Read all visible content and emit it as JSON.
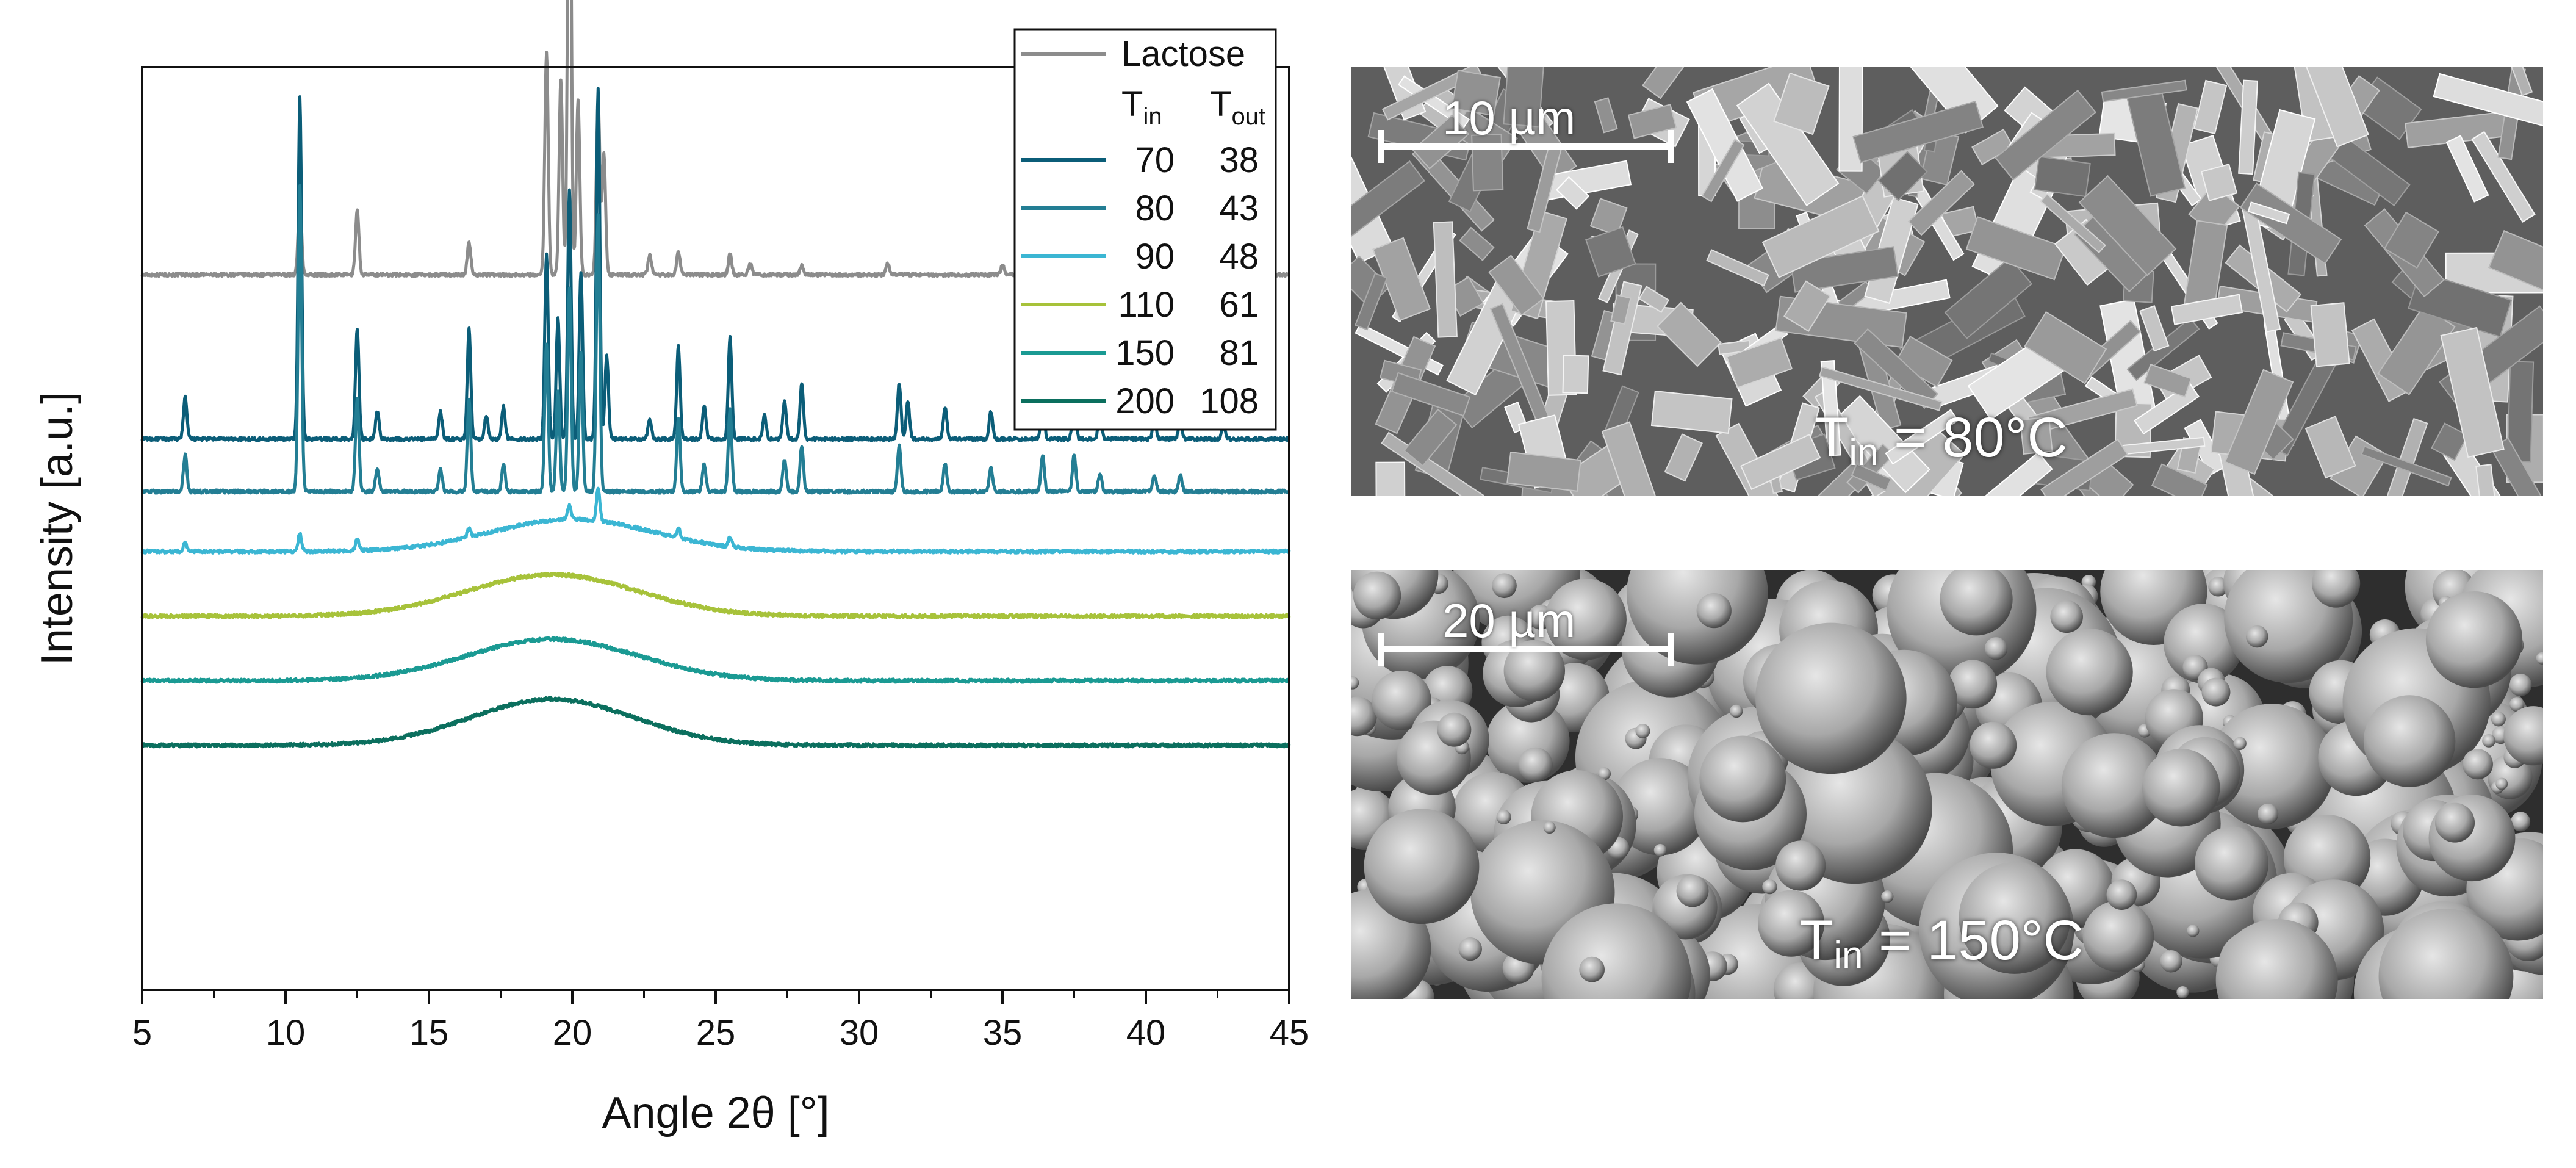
{
  "chart_data": {
    "type": "line",
    "xlabel": "Angle 2θ [°]",
    "ylabel": "Intensity [a.u.]",
    "xlim": [
      5,
      45
    ],
    "xticks": [
      5,
      10,
      15,
      20,
      25,
      30,
      35,
      40,
      45
    ],
    "yticks_shown": false,
    "stacked_offsets": true,
    "legend": {
      "placement": "top-right inside plot",
      "col_header_in": "T",
      "col_header_in_sub": "in",
      "col_header_out": "T",
      "col_header_out_sub": "out"
    },
    "series": [
      {
        "name": "Lactose",
        "t_in": "",
        "t_out": "",
        "color": "#8c8c8c",
        "baseline": 0.775,
        "amorphous": {
          "height": 0.0,
          "center": 19.5,
          "width": 3.5
        },
        "peaks": [
          [
            10.5,
            0.08
          ],
          [
            12.5,
            0.07
          ],
          [
            16.4,
            0.035
          ],
          [
            19.1,
            0.24
          ],
          [
            19.6,
            0.21
          ],
          [
            19.9,
            0.58
          ],
          [
            20.2,
            0.19
          ],
          [
            20.9,
            0.19
          ],
          [
            21.1,
            0.13
          ],
          [
            22.7,
            0.022
          ],
          [
            23.7,
            0.025
          ],
          [
            25.5,
            0.022
          ],
          [
            26.2,
            0.012
          ],
          [
            28.0,
            0.01
          ],
          [
            31.0,
            0.012
          ],
          [
            35.0,
            0.01
          ],
          [
            36.5,
            0.015
          ],
          [
            37.5,
            0.055
          ],
          [
            38.2,
            0.018
          ]
        ]
      },
      {
        "name": "70 38",
        "t_in": "70",
        "t_out": "38",
        "color": "#0b5d78",
        "baseline": 0.597,
        "amorphous": {
          "height": 0.0,
          "center": 19.5,
          "width": 3.5
        },
        "peaks": [
          [
            6.5,
            0.045
          ],
          [
            10.5,
            0.37
          ],
          [
            12.5,
            0.12
          ],
          [
            13.2,
            0.03
          ],
          [
            15.4,
            0.03
          ],
          [
            16.4,
            0.12
          ],
          [
            17.0,
            0.025
          ],
          [
            17.6,
            0.035
          ],
          [
            19.1,
            0.2
          ],
          [
            19.5,
            0.13
          ],
          [
            19.9,
            0.27
          ],
          [
            20.3,
            0.18
          ],
          [
            20.9,
            0.38
          ],
          [
            21.2,
            0.09
          ],
          [
            22.7,
            0.02
          ],
          [
            23.7,
            0.1
          ],
          [
            24.6,
            0.035
          ],
          [
            25.5,
            0.11
          ],
          [
            26.7,
            0.025
          ],
          [
            27.4,
            0.04
          ],
          [
            28.0,
            0.06
          ],
          [
            31.4,
            0.06
          ],
          [
            31.7,
            0.04
          ],
          [
            33.0,
            0.035
          ],
          [
            34.6,
            0.03
          ],
          [
            36.4,
            0.045
          ],
          [
            37.5,
            0.045
          ],
          [
            38.4,
            0.025
          ],
          [
            40.3,
            0.02
          ],
          [
            41.2,
            0.02
          ],
          [
            42.7,
            0.015
          ]
        ]
      },
      {
        "name": "80 43",
        "t_in": "80",
        "t_out": "43",
        "color": "#237e94",
        "baseline": 0.54,
        "amorphous": {
          "height": 0.0,
          "center": 19.5,
          "width": 3.5
        },
        "peaks": [
          [
            6.5,
            0.04
          ],
          [
            10.5,
            0.33
          ],
          [
            12.5,
            0.1
          ],
          [
            13.2,
            0.025
          ],
          [
            15.4,
            0.025
          ],
          [
            16.4,
            0.1
          ],
          [
            17.6,
            0.03
          ],
          [
            19.1,
            0.16
          ],
          [
            19.5,
            0.11
          ],
          [
            19.9,
            0.22
          ],
          [
            20.3,
            0.15
          ],
          [
            20.9,
            0.3
          ],
          [
            23.7,
            0.08
          ],
          [
            24.6,
            0.03
          ],
          [
            25.5,
            0.09
          ],
          [
            27.4,
            0.035
          ],
          [
            28.0,
            0.05
          ],
          [
            31.4,
            0.05
          ],
          [
            33.0,
            0.03
          ],
          [
            34.6,
            0.025
          ],
          [
            36.4,
            0.04
          ],
          [
            37.5,
            0.04
          ],
          [
            38.4,
            0.02
          ],
          [
            40.3,
            0.018
          ],
          [
            41.2,
            0.018
          ]
        ]
      },
      {
        "name": "90 48",
        "t_in": "90",
        "t_out": "48",
        "color": "#3bb6d3",
        "baseline": 0.475,
        "amorphous": {
          "height": 0.035,
          "center": 20.0,
          "width": 4.0
        },
        "peaks": [
          [
            6.5,
            0.01
          ],
          [
            10.5,
            0.02
          ],
          [
            12.5,
            0.012
          ],
          [
            16.4,
            0.01
          ],
          [
            19.9,
            0.015
          ],
          [
            20.9,
            0.035
          ],
          [
            23.7,
            0.01
          ],
          [
            25.5,
            0.01
          ]
        ]
      },
      {
        "name": "110 61",
        "t_in": "110",
        "t_out": "61",
        "color": "#a7c23a",
        "baseline": 0.405,
        "amorphous": {
          "height": 0.045,
          "center": 19.3,
          "width": 4.2
        },
        "peaks": []
      },
      {
        "name": "150 81",
        "t_in": "150",
        "t_out": "81",
        "color": "#1a9a93",
        "baseline": 0.335,
        "amorphous": {
          "height": 0.045,
          "center": 19.3,
          "width": 4.2
        },
        "peaks": []
      },
      {
        "name": "200 108",
        "t_in": "200",
        "t_out": "108",
        "color": "#0b6f5e",
        "baseline": 0.265,
        "amorphous": {
          "height": 0.05,
          "center": 19.3,
          "width": 4.0
        },
        "peaks": []
      }
    ]
  },
  "sem_images": [
    {
      "scale_label": "10 µm",
      "temp_prefix": "T",
      "temp_sub": "in",
      "temp_value": " = 80°C",
      "morphology": "crystalline plates"
    },
    {
      "scale_label": "20 µm",
      "temp_prefix": "T",
      "temp_sub": "in",
      "temp_value": " = 150°C",
      "morphology": "spherical particles"
    }
  ]
}
